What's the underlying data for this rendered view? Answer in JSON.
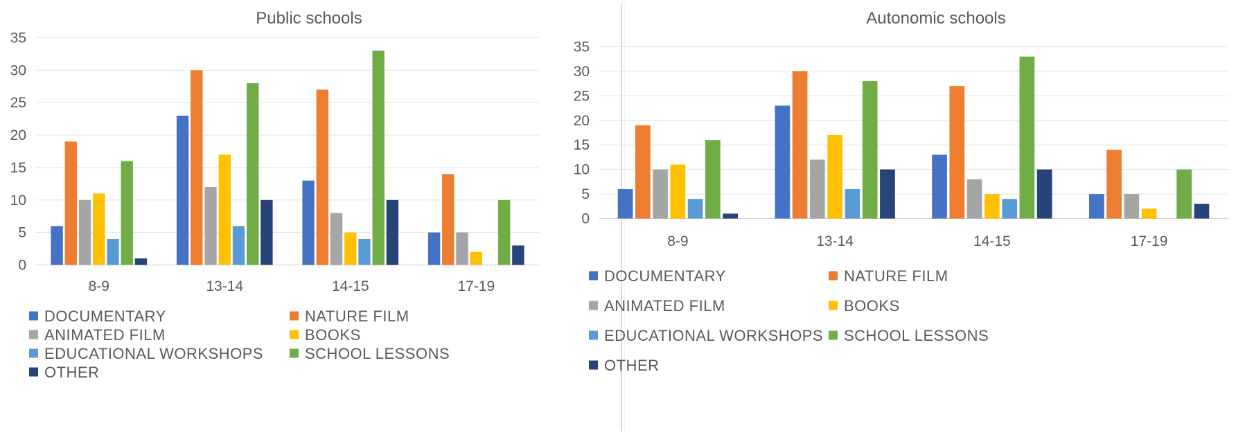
{
  "chart_data": [
    {
      "type": "bar",
      "title": "Public schools",
      "categories": [
        "8-9",
        "13-14",
        "14-15",
        "17-19"
      ],
      "ylim": [
        0,
        35
      ],
      "yticks": [
        0,
        5,
        10,
        15,
        20,
        25,
        30,
        35
      ],
      "grid": true,
      "legend_position": "bottom",
      "series": [
        {
          "name": "DOCUMENTARY",
          "color": "#4472C4",
          "values": [
            6,
            23,
            13,
            5
          ]
        },
        {
          "name": "NATURE FILM",
          "color": "#ED7D31",
          "values": [
            19,
            30,
            27,
            14
          ]
        },
        {
          "name": "ANIMATED FILM",
          "color": "#A5A5A5",
          "values": [
            10,
            12,
            8,
            5
          ]
        },
        {
          "name": "BOOKS",
          "color": "#FFC000",
          "values": [
            11,
            17,
            5,
            2
          ]
        },
        {
          "name": "EDUCATIONAL WORKSHOPS",
          "color": "#5B9BD5",
          "values": [
            4,
            6,
            4,
            0
          ]
        },
        {
          "name": "SCHOOL LESSONS",
          "color": "#70AD47",
          "values": [
            16,
            28,
            33,
            10
          ]
        },
        {
          "name": "OTHER",
          "color": "#264478",
          "values": [
            1,
            10,
            10,
            3
          ]
        }
      ]
    },
    {
      "type": "bar",
      "title": "Autonomic schools",
      "categories": [
        "8-9",
        "13-14",
        "14-15",
        "17-19"
      ],
      "ylim": [
        0,
        35
      ],
      "yticks": [
        0,
        5,
        10,
        15,
        20,
        25,
        30,
        35
      ],
      "grid": true,
      "legend_position": "bottom",
      "series": [
        {
          "name": "DOCUMENTARY",
          "color": "#4472C4",
          "values": [
            6,
            23,
            13,
            5
          ]
        },
        {
          "name": "NATURE FILM",
          "color": "#ED7D31",
          "values": [
            19,
            30,
            27,
            14
          ]
        },
        {
          "name": "ANIMATED FILM",
          "color": "#A5A5A5",
          "values": [
            10,
            12,
            8,
            5
          ]
        },
        {
          "name": "BOOKS",
          "color": "#FFC000",
          "values": [
            11,
            17,
            5,
            2
          ]
        },
        {
          "name": "EDUCATIONAL WORKSHOPS",
          "color": "#5B9BD5",
          "values": [
            4,
            6,
            4,
            0
          ]
        },
        {
          "name": "SCHOOL LESSONS",
          "color": "#70AD47",
          "values": [
            16,
            28,
            33,
            10
          ]
        },
        {
          "name": "OTHER",
          "color": "#264478",
          "values": [
            1,
            10,
            10,
            3
          ]
        }
      ]
    }
  ]
}
